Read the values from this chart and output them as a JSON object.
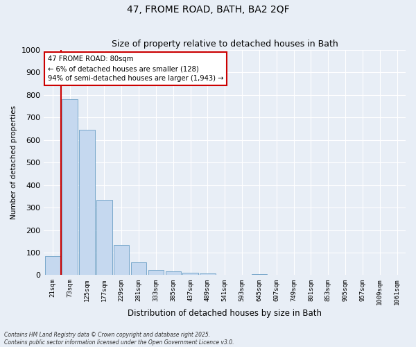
{
  "title1": "47, FROME ROAD, BATH, BA2 2QF",
  "title2": "Size of property relative to detached houses in Bath",
  "xlabel": "Distribution of detached houses by size in Bath",
  "ylabel": "Number of detached properties",
  "categories": [
    "21sqm",
    "73sqm",
    "125sqm",
    "177sqm",
    "229sqm",
    "281sqm",
    "333sqm",
    "385sqm",
    "437sqm",
    "489sqm",
    "541sqm",
    "593sqm",
    "645sqm",
    "697sqm",
    "749sqm",
    "801sqm",
    "853sqm",
    "905sqm",
    "957sqm",
    "1009sqm",
    "1061sqm"
  ],
  "values": [
    85,
    780,
    645,
    335,
    135,
    58,
    22,
    18,
    10,
    8,
    0,
    0,
    5,
    0,
    0,
    0,
    0,
    0,
    0,
    0,
    0
  ],
  "bar_color": "#c5d8ef",
  "bar_edge_color": "#6a9ec5",
  "redline_x": 0.5,
  "annotation_text": "47 FROME ROAD: 80sqm\n← 6% of detached houses are smaller (128)\n94% of semi-detached houses are larger (1,943) →",
  "annotation_box_color": "#ffffff",
  "annotation_border_color": "#cc0000",
  "redline_color": "#cc0000",
  "ylim": [
    0,
    1000
  ],
  "yticks": [
    0,
    100,
    200,
    300,
    400,
    500,
    600,
    700,
    800,
    900,
    1000
  ],
  "bg_color": "#e8eef6",
  "grid_color": "#ffffff",
  "footer": "Contains HM Land Registry data © Crown copyright and database right 2025.\nContains public sector information licensed under the Open Government Licence v3.0.",
  "title_fontsize": 10,
  "subtitle_fontsize": 9,
  "bar_width": 0.9
}
